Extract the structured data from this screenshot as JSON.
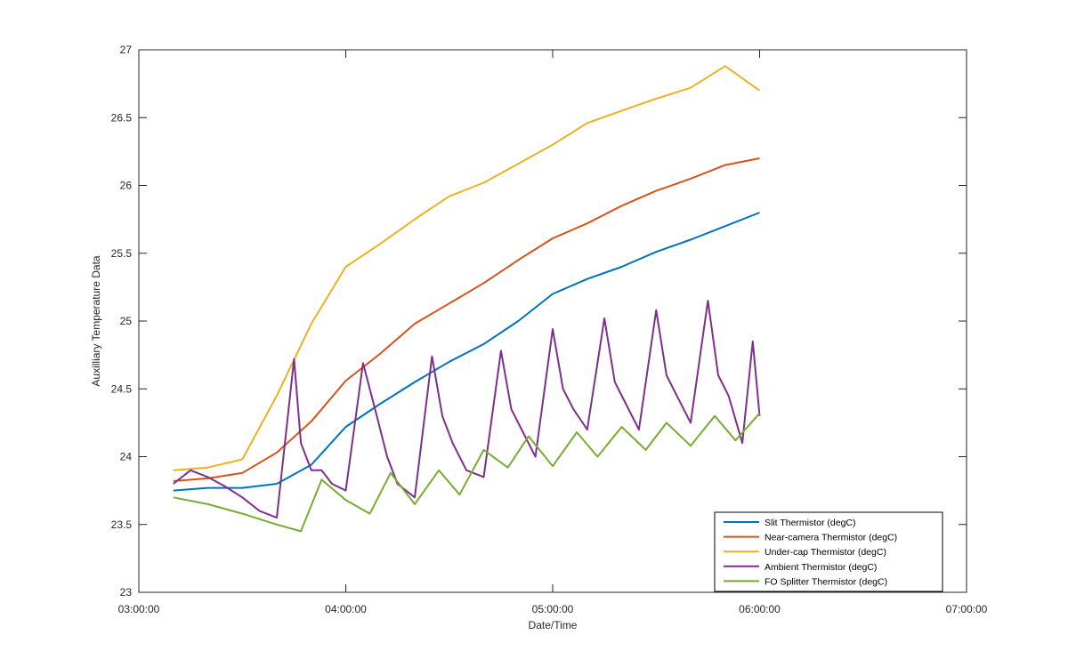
{
  "chart_data": {
    "type": "line",
    "title": "",
    "xlabel": "Date/Time",
    "ylabel": "Auxilliary Temperature Data",
    "xlim": [
      "03:00:00",
      "07:00:00"
    ],
    "ylim": [
      23,
      27
    ],
    "xticks": [
      "03:00:00",
      "04:00:00",
      "05:00:00",
      "06:00:00",
      "07:00:00"
    ],
    "yticks": [
      "23",
      "23.5",
      "24",
      "24.5",
      "25",
      "25.5",
      "26",
      "26.5",
      "27"
    ],
    "grid": false,
    "legend_position": "bottom-right",
    "series": [
      {
        "name": "Slit Thermistor (degC)",
        "color": "#0072BD",
        "x": [
          "03:10:00",
          "03:20:00",
          "03:30:00",
          "03:40:00",
          "03:50:00",
          "04:00:00",
          "04:10:00",
          "04:20:00",
          "04:30:00",
          "04:40:00",
          "04:50:00",
          "05:00:00",
          "05:10:00",
          "05:20:00",
          "05:30:00",
          "05:40:00",
          "05:50:00",
          "06:00:00"
        ],
        "y": [
          23.75,
          23.77,
          23.77,
          23.8,
          23.94,
          24.22,
          24.39,
          24.55,
          24.7,
          24.83,
          25.0,
          25.2,
          25.31,
          25.4,
          25.51,
          25.6,
          25.7,
          25.8
        ]
      },
      {
        "name": "Near-camera Thermistor (degC)",
        "color": "#D95319",
        "x": [
          "03:10:00",
          "03:20:00",
          "03:30:00",
          "03:40:00",
          "03:50:00",
          "04:00:00",
          "04:10:00",
          "04:20:00",
          "04:30:00",
          "04:40:00",
          "04:50:00",
          "05:00:00",
          "05:10:00",
          "05:20:00",
          "05:30:00",
          "05:40:00",
          "05:50:00",
          "06:00:00"
        ],
        "y": [
          23.82,
          23.84,
          23.88,
          24.03,
          24.26,
          24.56,
          24.76,
          24.98,
          25.13,
          25.28,
          25.45,
          25.61,
          25.72,
          25.85,
          25.96,
          26.05,
          26.15,
          26.2
        ]
      },
      {
        "name": "Under-cap Thermistor (degC)",
        "color": "#EDB120",
        "x": [
          "03:10:00",
          "03:20:00",
          "03:30:00",
          "03:40:00",
          "03:50:00",
          "04:00:00",
          "04:10:00",
          "04:20:00",
          "04:30:00",
          "04:40:00",
          "04:50:00",
          "05:00:00",
          "05:10:00",
          "05:20:00",
          "05:30:00",
          "05:40:00",
          "05:50:00",
          "06:00:00"
        ],
        "y": [
          23.9,
          23.92,
          23.98,
          24.45,
          24.98,
          25.4,
          25.57,
          25.75,
          25.92,
          26.02,
          26.16,
          26.3,
          26.46,
          26.55,
          26.64,
          26.72,
          26.88,
          26.7
        ]
      },
      {
        "name": "Ambient Thermistor (degC)",
        "color": "#7E2F8E",
        "x": [
          "03:10:00",
          "03:15:00",
          "03:20:00",
          "03:25:00",
          "03:30:00",
          "03:35:00",
          "03:40:00",
          "03:45:00",
          "03:47:00",
          "03:50:00",
          "03:53:00",
          "03:56:00",
          "04:00:00",
          "04:05:00",
          "04:09:00",
          "04:12:00",
          "04:15:00",
          "04:20:00",
          "04:25:00",
          "04:28:00",
          "04:31:00",
          "04:35:00",
          "04:40:00",
          "04:45:00",
          "04:48:00",
          "04:51:00",
          "04:55:00",
          "05:00:00",
          "05:03:00",
          "05:06:00",
          "05:10:00",
          "05:15:00",
          "05:18:00",
          "05:21:00",
          "05:25:00",
          "05:30:00",
          "05:33:00",
          "05:36:00",
          "05:40:00",
          "05:45:00",
          "05:48:00",
          "05:51:00",
          "05:55:00",
          "05:58:00",
          "06:00:00"
        ],
        "y": [
          23.8,
          23.9,
          23.85,
          23.78,
          23.7,
          23.6,
          23.55,
          24.72,
          24.1,
          23.9,
          23.9,
          23.8,
          23.75,
          24.69,
          24.3,
          24.0,
          23.8,
          23.7,
          24.74,
          24.3,
          24.1,
          23.9,
          23.85,
          24.78,
          24.35,
          24.2,
          24.0,
          24.94,
          24.5,
          24.35,
          24.2,
          25.02,
          24.55,
          24.4,
          24.2,
          25.08,
          24.6,
          24.45,
          24.25,
          25.15,
          24.6,
          24.45,
          24.1,
          24.85,
          24.3
        ]
      },
      {
        "name": "FO Splitter Thermistor (degC)",
        "color": "#77AC30",
        "x": [
          "03:10:00",
          "03:20:00",
          "03:30:00",
          "03:40:00",
          "03:47:00",
          "03:53:00",
          "04:00:00",
          "04:07:00",
          "04:13:00",
          "04:20:00",
          "04:27:00",
          "04:33:00",
          "04:40:00",
          "04:47:00",
          "04:53:00",
          "05:00:00",
          "05:07:00",
          "05:13:00",
          "05:20:00",
          "05:27:00",
          "05:33:00",
          "05:40:00",
          "05:47:00",
          "05:53:00",
          "06:00:00"
        ],
        "y": [
          23.7,
          23.65,
          23.58,
          23.5,
          23.45,
          23.83,
          23.68,
          23.58,
          23.88,
          23.65,
          23.9,
          23.72,
          24.05,
          23.92,
          24.15,
          23.93,
          24.18,
          24.0,
          24.22,
          24.05,
          24.25,
          24.08,
          24.3,
          24.12,
          24.32
        ]
      }
    ]
  }
}
